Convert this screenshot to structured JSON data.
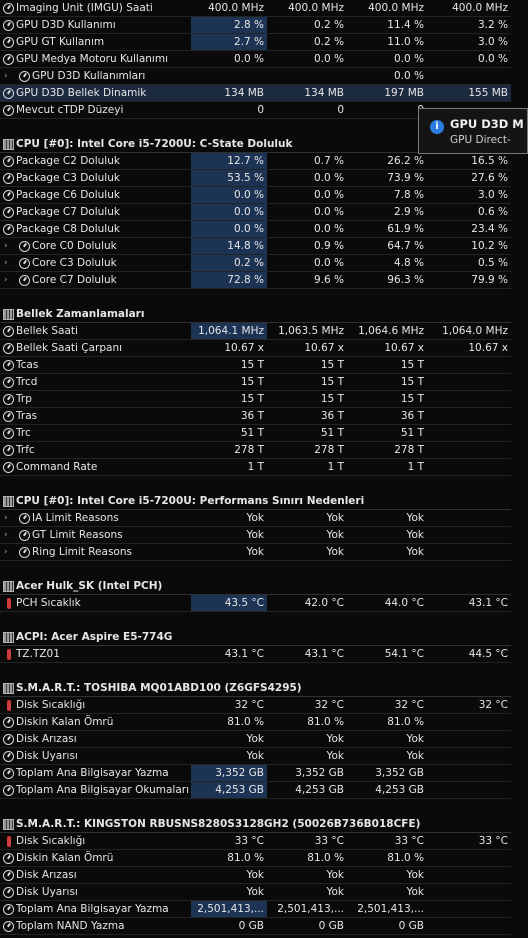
{
  "rows": [
    {
      "type": "sensor",
      "icon": "gauge",
      "label": "Imaging Unit (IMGU) Saati",
      "values": [
        "400.0 MHz",
        "400.0 MHz",
        "400.0 MHz",
        "400.0 MHz"
      ]
    },
    {
      "type": "sensor",
      "icon": "gauge",
      "label": "GPU D3D Kullanımı",
      "values": [
        "2.8 %",
        "0.2 %",
        "11.4 %",
        "3.2 %"
      ],
      "hl": true
    },
    {
      "type": "sensor",
      "icon": "gauge",
      "label": "GPU GT Kullanım",
      "values": [
        "2.7 %",
        "0.2 %",
        "11.0 %",
        "3.0 %"
      ],
      "hl": true
    },
    {
      "type": "sensor",
      "icon": "gauge",
      "label": "GPU Medya Motoru Kullanımı",
      "values": [
        "0.0 %",
        "0.0 %",
        "0.0 %",
        "0.0 %"
      ]
    },
    {
      "type": "sensor",
      "icon": "gauge",
      "label": "GPU D3D Kullanımları",
      "values": [
        "",
        "",
        "0.0 %",
        ""
      ],
      "expand": true,
      "indent": true
    },
    {
      "type": "sensor",
      "icon": "gauge",
      "label": "GPU D3D Bellek Dinamik",
      "values": [
        "134 MB",
        "134 MB",
        "197 MB",
        "155 MB"
      ],
      "selected": true
    },
    {
      "type": "sensor",
      "icon": "gauge",
      "label": "Mevcut cTDP Düzeyi",
      "values": [
        "0",
        "0",
        "0",
        ""
      ]
    },
    {
      "type": "blank"
    },
    {
      "type": "section",
      "label": "CPU [#0]: Intel Core i5-7200U: C-State Doluluk"
    },
    {
      "type": "sensor",
      "icon": "gauge",
      "label": "Package C2 Doluluk",
      "values": [
        "12.7 %",
        "0.7 %",
        "26.2 %",
        "16.5 %"
      ],
      "hl": true
    },
    {
      "type": "sensor",
      "icon": "gauge",
      "label": "Package C3 Doluluk",
      "values": [
        "53.5 %",
        "0.0 %",
        "73.9 %",
        "27.6 %"
      ],
      "hl": true
    },
    {
      "type": "sensor",
      "icon": "gauge",
      "label": "Package C6 Doluluk",
      "values": [
        "0.0 %",
        "0.0 %",
        "7.8 %",
        "3.0 %"
      ],
      "hl": true
    },
    {
      "type": "sensor",
      "icon": "gauge",
      "label": "Package C7 Doluluk",
      "values": [
        "0.0 %",
        "0.0 %",
        "2.9 %",
        "0.6 %"
      ],
      "hl": true
    },
    {
      "type": "sensor",
      "icon": "gauge",
      "label": "Package C8 Doluluk",
      "values": [
        "0.0 %",
        "0.0 %",
        "61.9 %",
        "23.4 %"
      ],
      "hl": true
    },
    {
      "type": "sensor",
      "icon": "gauge",
      "label": "Core C0 Doluluk",
      "values": [
        "14.8 %",
        "0.9 %",
        "64.7 %",
        "10.2 %"
      ],
      "expand": true,
      "indent": true,
      "hl": true
    },
    {
      "type": "sensor",
      "icon": "gauge",
      "label": "Core C3 Doluluk",
      "values": [
        "0.2 %",
        "0.0 %",
        "4.8 %",
        "0.5 %"
      ],
      "expand": true,
      "indent": true,
      "hl": true
    },
    {
      "type": "sensor",
      "icon": "gauge",
      "label": "Core C7 Doluluk",
      "values": [
        "72.8 %",
        "9.6 %",
        "96.3 %",
        "79.9 %"
      ],
      "expand": true,
      "indent": true,
      "hl": true
    },
    {
      "type": "blank"
    },
    {
      "type": "section",
      "label": "Bellek Zamanlamaları"
    },
    {
      "type": "sensor",
      "icon": "gauge",
      "label": "Bellek Saati",
      "values": [
        "1,064.1 MHz",
        "1,063.5 MHz",
        "1,064.6 MHz",
        "1,064.0 MHz"
      ],
      "hl": true
    },
    {
      "type": "sensor",
      "icon": "gauge",
      "label": "Bellek Saati Çarpanı",
      "values": [
        "10.67 x",
        "10.67 x",
        "10.67 x",
        "10.67 x"
      ]
    },
    {
      "type": "sensor",
      "icon": "gauge",
      "label": "Tcas",
      "values": [
        "15 T",
        "15 T",
        "15 T",
        ""
      ]
    },
    {
      "type": "sensor",
      "icon": "gauge",
      "label": "Trcd",
      "values": [
        "15 T",
        "15 T",
        "15 T",
        ""
      ]
    },
    {
      "type": "sensor",
      "icon": "gauge",
      "label": "Trp",
      "values": [
        "15 T",
        "15 T",
        "15 T",
        ""
      ]
    },
    {
      "type": "sensor",
      "icon": "gauge",
      "label": "Tras",
      "values": [
        "36 T",
        "36 T",
        "36 T",
        ""
      ]
    },
    {
      "type": "sensor",
      "icon": "gauge",
      "label": "Trc",
      "values": [
        "51 T",
        "51 T",
        "51 T",
        ""
      ]
    },
    {
      "type": "sensor",
      "icon": "gauge",
      "label": "Trfc",
      "values": [
        "278 T",
        "278 T",
        "278 T",
        ""
      ]
    },
    {
      "type": "sensor",
      "icon": "gauge",
      "label": "Command Rate",
      "values": [
        "1 T",
        "1 T",
        "1 T",
        ""
      ]
    },
    {
      "type": "blank"
    },
    {
      "type": "section",
      "label": "CPU [#0]: Intel Core i5-7200U: Performans Sınırı Nedenleri"
    },
    {
      "type": "sensor",
      "icon": "gauge",
      "label": "IA Limit Reasons",
      "values": [
        "Yok",
        "Yok",
        "Yok",
        ""
      ],
      "expand": true,
      "indent": true
    },
    {
      "type": "sensor",
      "icon": "gauge",
      "label": "GT Limit Reasons",
      "values": [
        "Yok",
        "Yok",
        "Yok",
        ""
      ],
      "expand": true,
      "indent": true
    },
    {
      "type": "sensor",
      "icon": "gauge",
      "label": "Ring Limit Reasons",
      "values": [
        "Yok",
        "Yok",
        "Yok",
        ""
      ],
      "expand": true,
      "indent": true
    },
    {
      "type": "blank"
    },
    {
      "type": "section",
      "label": "Acer Hulk_SK (Intel PCH)"
    },
    {
      "type": "sensor",
      "icon": "thermo",
      "label": "PCH Sıcaklık",
      "values": [
        "43.5 °C",
        "42.0 °C",
        "44.0 °C",
        "43.1 °C"
      ],
      "hl": true
    },
    {
      "type": "blank"
    },
    {
      "type": "section",
      "label": "ACPI: Acer Aspire E5-774G"
    },
    {
      "type": "sensor",
      "icon": "thermo",
      "label": "TZ.TZ01",
      "values": [
        "43.1 °C",
        "43.1 °C",
        "54.1 °C",
        "44.5 °C"
      ]
    },
    {
      "type": "blank"
    },
    {
      "type": "section",
      "label": "S.M.A.R.T.: TOSHIBA MQ01ABD100 (Z6GFS4295)"
    },
    {
      "type": "sensor",
      "icon": "thermo",
      "label": "Disk Sıcaklığı",
      "values": [
        "32 °C",
        "32 °C",
        "32 °C",
        "32 °C"
      ]
    },
    {
      "type": "sensor",
      "icon": "gauge",
      "label": "Diskin Kalan Ömrü",
      "values": [
        "81.0 %",
        "81.0 %",
        "81.0 %",
        ""
      ]
    },
    {
      "type": "sensor",
      "icon": "gauge",
      "label": "Disk Arızası",
      "values": [
        "Yok",
        "Yok",
        "Yok",
        ""
      ]
    },
    {
      "type": "sensor",
      "icon": "gauge",
      "label": "Disk Uyarısı",
      "values": [
        "Yok",
        "Yok",
        "Yok",
        ""
      ]
    },
    {
      "type": "sensor",
      "icon": "gauge",
      "label": "Toplam Ana Bilgisayar Yazma",
      "values": [
        "3,352 GB",
        "3,352 GB",
        "3,352 GB",
        ""
      ],
      "hl": true
    },
    {
      "type": "sensor",
      "icon": "gauge",
      "label": "Toplam Ana Bilgisayar Okumaları",
      "values": [
        "4,253 GB",
        "4,253 GB",
        "4,253 GB",
        ""
      ],
      "hl": true
    },
    {
      "type": "blank"
    },
    {
      "type": "section",
      "label": "S.M.A.R.T.: KINGSTON RBUSNS8280S3128GH2 (50026B736B018CFE)"
    },
    {
      "type": "sensor",
      "icon": "thermo",
      "label": "Disk Sıcaklığı",
      "values": [
        "33 °C",
        "33 °C",
        "33 °C",
        "33 °C"
      ]
    },
    {
      "type": "sensor",
      "icon": "gauge",
      "label": "Diskin Kalan Ömrü",
      "values": [
        "81.0 %",
        "81.0 %",
        "81.0 %",
        ""
      ]
    },
    {
      "type": "sensor",
      "icon": "gauge",
      "label": "Disk Arızası",
      "values": [
        "Yok",
        "Yok",
        "Yok",
        ""
      ]
    },
    {
      "type": "sensor",
      "icon": "gauge",
      "label": "Disk Uyarısı",
      "values": [
        "Yok",
        "Yok",
        "Yok",
        ""
      ]
    },
    {
      "type": "sensor",
      "icon": "gauge",
      "label": "Toplam Ana Bilgisayar Yazma",
      "values": [
        "2,501,413,...",
        "2,501,413,...",
        "2,501,413,...",
        ""
      ],
      "hl": true
    },
    {
      "type": "sensor",
      "icon": "gauge",
      "label": "Toplam NAND Yazma",
      "values": [
        "0 GB",
        "0 GB",
        "0 GB",
        ""
      ]
    }
  ],
  "tooltip": {
    "title": "GPU D3D M",
    "subtitle": "GPU Direct-"
  },
  "colors": {
    "highlight": "#1d3354",
    "selected": "#1c2a3f",
    "thermo": "#d23b3b",
    "info": "#2a7dde"
  }
}
